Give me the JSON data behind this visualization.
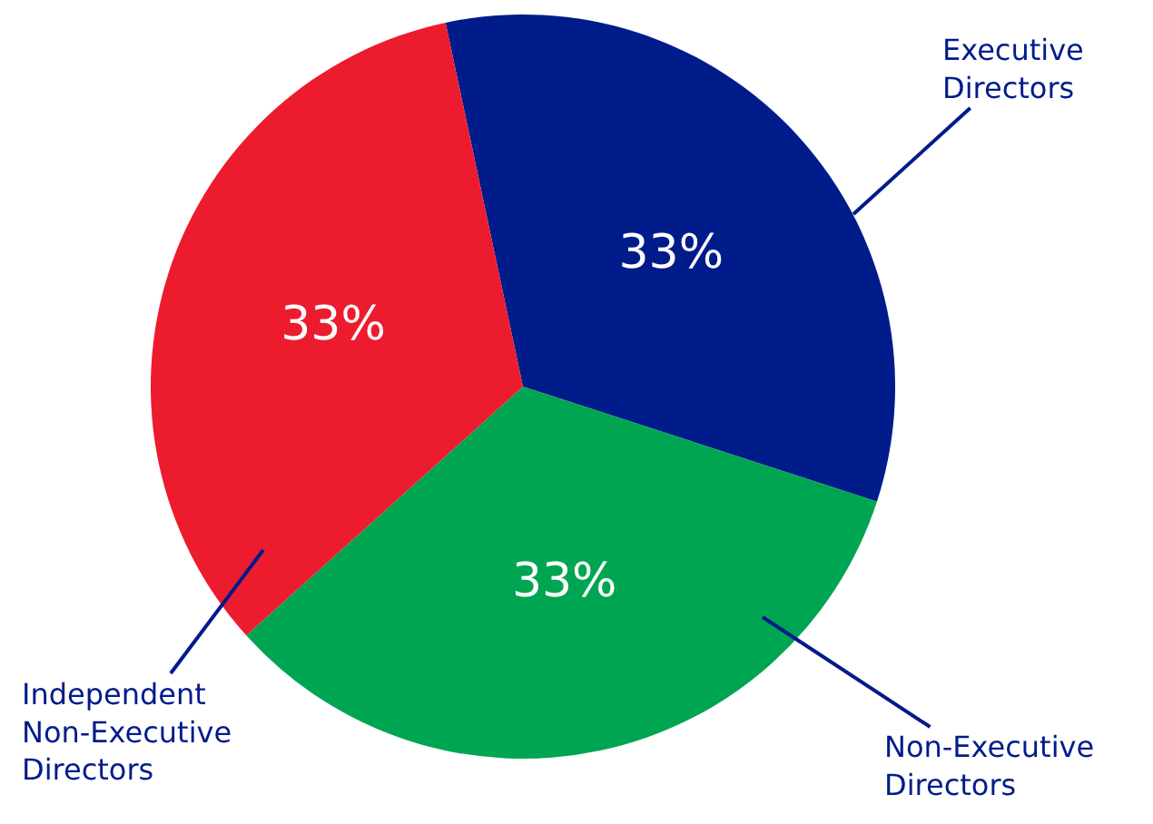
{
  "chart_data": {
    "type": "pie",
    "categories": [
      "Executive Directors",
      "Non-Executive Directors",
      "Independent Non-Executive Directors"
    ],
    "values": [
      33,
      33,
      33
    ],
    "colors": [
      "#001b8a",
      "#00a551",
      "#ec1c2e"
    ],
    "value_labels": [
      "33%",
      "33%",
      "33%"
    ],
    "legend": false
  }
}
